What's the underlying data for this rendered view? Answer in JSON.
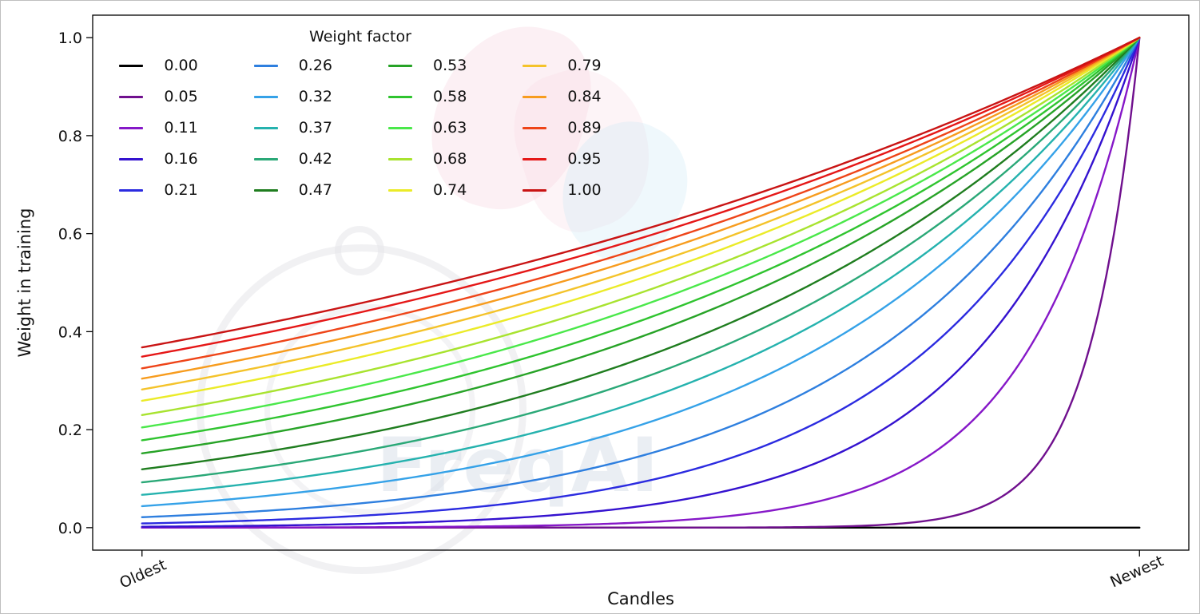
{
  "figure": {
    "background": "#ffffff"
  },
  "watermark": {
    "text": "FreqAI"
  },
  "chart_data": {
    "type": "line",
    "title": "",
    "xlabel": "Candles",
    "ylabel": "Weight in training",
    "x_axis": {
      "tick_labels": [
        "Oldest",
        "Newest"
      ],
      "range_description": "training candles from oldest (left) to newest (right), normalized 0 to 1"
    },
    "y_ticks": [
      0.0,
      0.2,
      0.4,
      0.6,
      0.8,
      1.0
    ],
    "y_tick_labels": [
      "0.0",
      "0.2",
      "0.4",
      "0.6",
      "0.8",
      "1.0"
    ],
    "ylim": [
      0.0,
      1.0
    ],
    "grid": false,
    "legend": {
      "title": "Weight factor",
      "columns": 4,
      "rows": 5,
      "position": "upper left",
      "order": "column-major",
      "frame": false
    },
    "curve_formula": "weight(x) = exp(-(1 - x) / factor) for factor > 0; factor = 0.00 gives weight 0 across all candles (flat black line); every curve with factor > 0 reaches weight 1.0 at the newest candle",
    "series": [
      {
        "label": "0.00",
        "factor": 0.0,
        "color": "#000000",
        "weight_at_oldest": 0.0,
        "weight_at_newest": 0.0
      },
      {
        "label": "0.05",
        "factor": 0.05,
        "color": "#70108e",
        "weight_at_oldest": 0.0,
        "weight_at_newest": 1.0
      },
      {
        "label": "0.11",
        "factor": 0.11,
        "color": "#8618c8",
        "weight_at_oldest": 0.0001,
        "weight_at_newest": 1.0
      },
      {
        "label": "0.16",
        "factor": 0.16,
        "color": "#3412cf",
        "weight_at_oldest": 0.0019,
        "weight_at_newest": 1.0
      },
      {
        "label": "0.21",
        "factor": 0.21,
        "color": "#2b2be0",
        "weight_at_oldest": 0.0086,
        "weight_at_newest": 1.0
      },
      {
        "label": "0.26",
        "factor": 0.26,
        "color": "#2e7fdf",
        "weight_at_oldest": 0.0213,
        "weight_at_newest": 1.0
      },
      {
        "label": "0.32",
        "factor": 0.32,
        "color": "#35a2e8",
        "weight_at_oldest": 0.0439,
        "weight_at_newest": 1.0
      },
      {
        "label": "0.37",
        "factor": 0.37,
        "color": "#25b2ae",
        "weight_at_oldest": 0.067,
        "weight_at_newest": 1.0
      },
      {
        "label": "0.42",
        "factor": 0.42,
        "color": "#2aa877",
        "weight_at_oldest": 0.0924,
        "weight_at_newest": 1.0
      },
      {
        "label": "0.47",
        "factor": 0.47,
        "color": "#1f7d1f",
        "weight_at_oldest": 0.1191,
        "weight_at_newest": 1.0
      },
      {
        "label": "0.53",
        "factor": 0.53,
        "color": "#27a327",
        "weight_at_oldest": 0.1516,
        "weight_at_newest": 1.0
      },
      {
        "label": "0.58",
        "factor": 0.58,
        "color": "#2fc42f",
        "weight_at_oldest": 0.1784,
        "weight_at_newest": 1.0
      },
      {
        "label": "0.63",
        "factor": 0.63,
        "color": "#4ae84a",
        "weight_at_oldest": 0.2045,
        "weight_at_newest": 1.0
      },
      {
        "label": "0.68",
        "factor": 0.68,
        "color": "#a8e32f",
        "weight_at_oldest": 0.2298,
        "weight_at_newest": 1.0
      },
      {
        "label": "0.74",
        "factor": 0.74,
        "color": "#ebeb28",
        "weight_at_oldest": 0.2589,
        "weight_at_newest": 1.0
      },
      {
        "label": "0.79",
        "factor": 0.79,
        "color": "#f4c32a",
        "weight_at_oldest": 0.282,
        "weight_at_newest": 1.0
      },
      {
        "label": "0.84",
        "factor": 0.84,
        "color": "#f79c1e",
        "weight_at_oldest": 0.3041,
        "weight_at_newest": 1.0
      },
      {
        "label": "0.89",
        "factor": 0.89,
        "color": "#ee4418",
        "weight_at_oldest": 0.3251,
        "weight_at_newest": 1.0
      },
      {
        "label": "0.95",
        "factor": 0.95,
        "color": "#e51717",
        "weight_at_oldest": 0.3489,
        "weight_at_newest": 1.0
      },
      {
        "label": "1.00",
        "factor": 1.0,
        "color": "#c91414",
        "weight_at_oldest": 0.3679,
        "weight_at_newest": 1.0
      }
    ]
  }
}
